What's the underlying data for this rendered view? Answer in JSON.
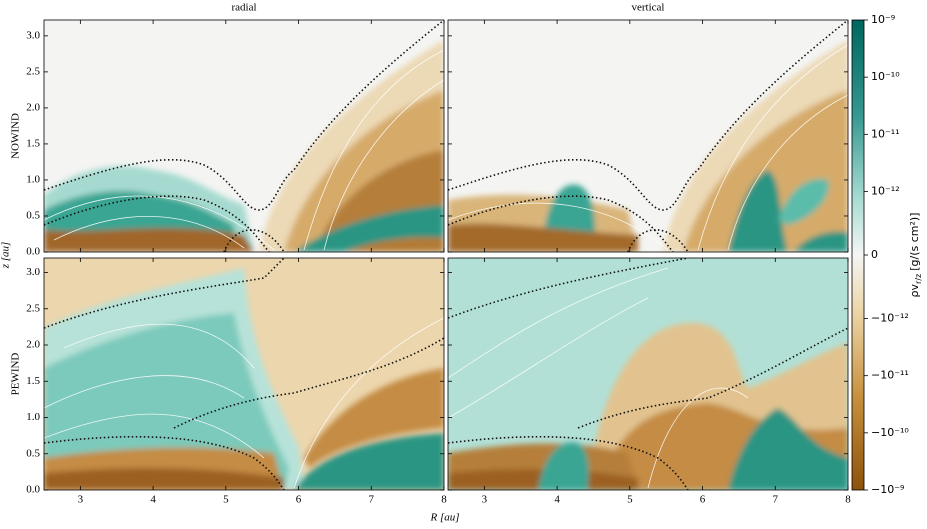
{
  "chart_data": [
    {
      "type": "heatmap",
      "title": "radial",
      "row_label": "NOWIND",
      "xlim": [
        2.5,
        8
      ],
      "ylim": [
        0,
        3.22
      ],
      "xticks": [
        3,
        4,
        5,
        6,
        7,
        8
      ],
      "yticks": [
        {
          "value": 0,
          "label": "0.0"
        },
        0.5,
        {
          "value": 1,
          "label": "1.0"
        },
        1.5,
        {
          "value": 2,
          "label": "2.0"
        },
        2.5,
        {
          "value": 3,
          "label": "3.0"
        }
      ]
    },
    {
      "type": "heatmap",
      "title": "vertical",
      "xlim": [
        2.5,
        8
      ],
      "ylim": [
        0,
        3.22
      ],
      "xticks": [
        3,
        4,
        5,
        6,
        7,
        8
      ],
      "yticks": [
        {
          "value": 0,
          "label": "0.0"
        },
        0.5,
        {
          "value": 1,
          "label": "1.0"
        },
        1.5,
        {
          "value": 2,
          "label": "2.0"
        },
        2.5,
        {
          "value": 3,
          "label": "3.0"
        }
      ]
    },
    {
      "type": "heatmap",
      "row_label": "PEWIND",
      "xlim": [
        2.5,
        8
      ],
      "ylim": [
        0,
        3.2
      ],
      "xticks": [
        3,
        4,
        5,
        6,
        7,
        8
      ],
      "yticks": [
        {
          "value": 0,
          "label": "0.0"
        },
        0.5,
        {
          "value": 1,
          "label": "1.0"
        },
        1.5,
        {
          "value": 2,
          "label": "2.0"
        },
        2.5,
        {
          "value": 3,
          "label": "3.0"
        }
      ]
    },
    {
      "type": "heatmap",
      "xlim": [
        2.5,
        8
      ],
      "ylim": [
        0,
        3.2
      ],
      "xticks": [
        3,
        4,
        5,
        6,
        7,
        8
      ],
      "yticks": [
        {
          "value": 0,
          "label": "0.0"
        },
        0.5,
        {
          "value": 1,
          "label": "1.0"
        },
        1.5,
        {
          "value": 2,
          "label": "2.0"
        },
        2.5,
        {
          "value": 3,
          "label": "3.0"
        }
      ]
    }
  ],
  "figure": {
    "xlabel": "R [au]",
    "ylabel": "z [au]"
  },
  "colorbar": {
    "label": "ρv",
    "label_subscript": "r/z",
    "label_unit": "[g/(s cm²)]",
    "scale": "symlog",
    "linthresh": 1e-12,
    "clim": [
      -1e-09,
      1e-09
    ],
    "ticks": [
      {
        "value": 1e-09,
        "label": "10⁻⁹"
      },
      {
        "value": 1e-10,
        "label": "10⁻¹⁰"
      },
      {
        "value": 1e-11,
        "label": "10⁻¹¹"
      },
      {
        "value": 1e-12,
        "label": "10⁻¹²"
      },
      0,
      {
        "value": -1e-12,
        "label": "−10⁻¹²"
      },
      {
        "value": -1e-11,
        "label": "−10⁻¹¹"
      },
      {
        "value": -1e-10,
        "label": "−10⁻¹⁰"
      },
      {
        "value": -1e-09,
        "label": "−10⁻⁹"
      }
    ]
  }
}
